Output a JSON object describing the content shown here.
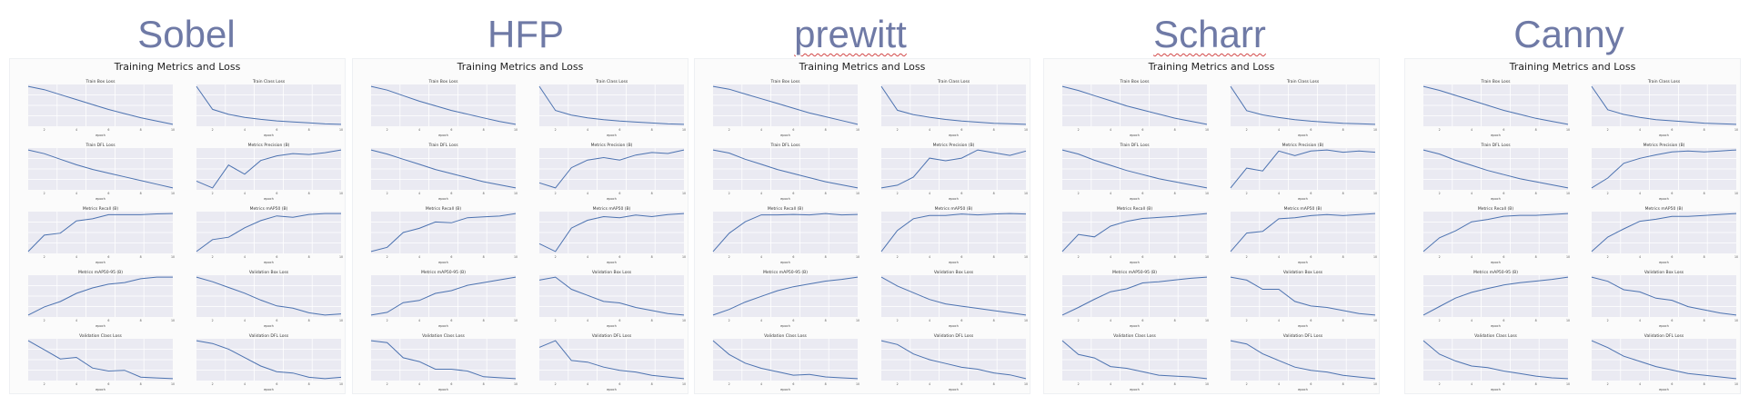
{
  "groups": [
    {
      "title": "Sobel",
      "squiggle": false
    },
    {
      "title": "HFP",
      "squiggle": false
    },
    {
      "title": "prewitt",
      "squiggle": true
    },
    {
      "title": "Scharr",
      "squiggle": true
    },
    {
      "title": "Canny",
      "squiggle": false
    }
  ],
  "colors": {
    "line": "#4c72b0",
    "axes_bg": "#eaeaf2",
    "grid": "#ffffff",
    "title": "#6f7aa6"
  },
  "chart_data": [
    {
      "type": "line",
      "title": "Training Metrics and Loss",
      "x": [
        1,
        2,
        3,
        4,
        5,
        6,
        7,
        8,
        9,
        10
      ],
      "xlabel": "epoch",
      "series": [
        {
          "name": "Train Box Loss",
          "values": [
            3.9,
            3.7,
            3.4,
            3.1,
            2.8,
            2.5,
            2.25,
            2.0,
            1.8,
            1.6
          ]
        },
        {
          "name": "Train Class Loss",
          "values": [
            5.8,
            3.5,
            3.0,
            2.7,
            2.5,
            2.35,
            2.25,
            2.15,
            2.05,
            2.0
          ]
        },
        {
          "name": "Train DFL Loss",
          "values": [
            4.5,
            4.3,
            4.0,
            3.7,
            3.45,
            3.25,
            3.05,
            2.85,
            2.65,
            2.45
          ]
        },
        {
          "name": "Metrics Precision (B)",
          "values": [
            0.2,
            0.05,
            0.55,
            0.35,
            0.65,
            0.75,
            0.8,
            0.78,
            0.82,
            0.88
          ]
        },
        {
          "name": "Metrics Recall (B)",
          "values": [
            0.05,
            0.45,
            0.5,
            0.8,
            0.85,
            0.95,
            0.95,
            0.95,
            0.97,
            0.98
          ]
        },
        {
          "name": "Metrics mAP50 (B)",
          "values": [
            0.1,
            0.35,
            0.4,
            0.6,
            0.75,
            0.85,
            0.82,
            0.88,
            0.9,
            0.9
          ]
        },
        {
          "name": "Metrics mAP50-95 (B)",
          "values": [
            0.05,
            0.2,
            0.3,
            0.45,
            0.55,
            0.62,
            0.65,
            0.72,
            0.75,
            0.75
          ]
        },
        {
          "name": "Validation Box Loss",
          "values": [
            2.8,
            2.6,
            2.35,
            2.1,
            1.8,
            1.55,
            1.45,
            1.25,
            1.15,
            1.2
          ]
        },
        {
          "name": "Validation Class Loss",
          "values": [
            3.6,
            3.0,
            2.4,
            2.5,
            1.8,
            1.6,
            1.65,
            1.2,
            1.15,
            1.1
          ]
        },
        {
          "name": "Validation DFL Loss",
          "values": [
            3.5,
            3.4,
            3.2,
            2.9,
            2.6,
            2.4,
            2.35,
            2.2,
            2.15,
            2.2
          ]
        }
      ]
    },
    {
      "type": "line",
      "title": "Training Metrics and Loss",
      "x": [
        1,
        2,
        3,
        4,
        5,
        6,
        7,
        8,
        9,
        10
      ],
      "xlabel": "epoch",
      "series": [
        {
          "name": "Train Box Loss",
          "values": [
            4.1,
            3.9,
            3.6,
            3.3,
            3.05,
            2.8,
            2.6,
            2.4,
            2.2,
            2.05
          ]
        },
        {
          "name": "Train Class Loss",
          "values": [
            6.0,
            3.4,
            2.9,
            2.6,
            2.4,
            2.25,
            2.15,
            2.05,
            1.95,
            1.9
          ]
        },
        {
          "name": "Train DFL Loss",
          "values": [
            4.3,
            4.1,
            3.85,
            3.6,
            3.35,
            3.15,
            2.95,
            2.75,
            2.6,
            2.45
          ]
        },
        {
          "name": "Metrics Precision (B)",
          "values": [
            0.1,
            0.0,
            0.4,
            0.55,
            0.6,
            0.55,
            0.65,
            0.7,
            0.68,
            0.75
          ]
        },
        {
          "name": "Metrics Recall (B)",
          "values": [
            0.0,
            0.1,
            0.45,
            0.55,
            0.7,
            0.68,
            0.8,
            0.82,
            0.84,
            0.9
          ]
        },
        {
          "name": "Metrics mAP50 (B)",
          "values": [
            0.2,
            0.05,
            0.5,
            0.65,
            0.72,
            0.7,
            0.75,
            0.72,
            0.76,
            0.78
          ]
        },
        {
          "name": "Metrics mAP50-95 (B)",
          "values": [
            0.05,
            0.1,
            0.28,
            0.32,
            0.45,
            0.5,
            0.6,
            0.65,
            0.7,
            0.75
          ]
        },
        {
          "name": "Validation Box Loss",
          "values": [
            2.5,
            2.6,
            2.2,
            2.0,
            1.8,
            1.75,
            1.6,
            1.5,
            1.4,
            1.35
          ]
        },
        {
          "name": "Validation Class Loss",
          "values": [
            3.1,
            3.0,
            2.2,
            2.0,
            1.6,
            1.6,
            1.5,
            1.2,
            1.15,
            1.1
          ]
        },
        {
          "name": "Validation DFL Loss",
          "values": [
            2.4,
            2.6,
            2.0,
            1.95,
            1.8,
            1.7,
            1.65,
            1.55,
            1.5,
            1.45
          ]
        }
      ]
    },
    {
      "type": "line",
      "title": "Training Metrics and Loss",
      "x": [
        1,
        2,
        3,
        4,
        5,
        6,
        7,
        8,
        9,
        10
      ],
      "xlabel": "epoch",
      "series": [
        {
          "name": "Train Box Loss",
          "values": [
            4.0,
            3.85,
            3.6,
            3.35,
            3.1,
            2.85,
            2.6,
            2.4,
            2.2,
            2.0
          ]
        },
        {
          "name": "Train Class Loss",
          "values": [
            5.5,
            3.3,
            2.9,
            2.65,
            2.45,
            2.3,
            2.2,
            2.1,
            2.05,
            2.0
          ]
        },
        {
          "name": "Train DFL Loss",
          "values": [
            4.0,
            3.85,
            3.55,
            3.3,
            3.05,
            2.85,
            2.65,
            2.45,
            2.3,
            2.15
          ]
        },
        {
          "name": "Metrics Precision (B)",
          "values": [
            0.0,
            0.05,
            0.2,
            0.55,
            0.5,
            0.55,
            0.7,
            0.65,
            0.6,
            0.68
          ]
        },
        {
          "name": "Metrics Recall (B)",
          "values": [
            0.05,
            0.45,
            0.7,
            0.85,
            0.85,
            0.86,
            0.85,
            0.88,
            0.85,
            0.86
          ]
        },
        {
          "name": "Metrics mAP50 (B)",
          "values": [
            0.05,
            0.5,
            0.75,
            0.82,
            0.82,
            0.85,
            0.83,
            0.85,
            0.86,
            0.85
          ]
        },
        {
          "name": "Metrics mAP50-95 (B)",
          "values": [
            0.05,
            0.15,
            0.28,
            0.38,
            0.48,
            0.55,
            0.6,
            0.65,
            0.68,
            0.72
          ]
        },
        {
          "name": "Validation Box Loss",
          "values": [
            2.9,
            2.5,
            2.2,
            1.9,
            1.7,
            1.6,
            1.5,
            1.4,
            1.3,
            1.2
          ]
        },
        {
          "name": "Validation Class Loss",
          "values": [
            3.2,
            2.4,
            1.9,
            1.6,
            1.4,
            1.2,
            1.25,
            1.1,
            1.05,
            1.0
          ]
        },
        {
          "name": "Validation DFL Loss",
          "values": [
            2.3,
            2.2,
            1.95,
            1.8,
            1.7,
            1.6,
            1.55,
            1.45,
            1.4,
            1.3
          ]
        }
      ]
    },
    {
      "type": "line",
      "title": "Training Metrics and Loss",
      "x": [
        1,
        2,
        3,
        4,
        5,
        6,
        7,
        8,
        9,
        10
      ],
      "xlabel": "epoch",
      "series": [
        {
          "name": "Train Box Loss",
          "values": [
            3.8,
            3.6,
            3.35,
            3.1,
            2.85,
            2.65,
            2.45,
            2.25,
            2.1,
            1.95
          ]
        },
        {
          "name": "Train Class Loss",
          "values": [
            5.6,
            3.3,
            2.9,
            2.65,
            2.45,
            2.3,
            2.2,
            2.1,
            2.05,
            2.0
          ]
        },
        {
          "name": "Train DFL Loss",
          "values": [
            4.1,
            3.9,
            3.6,
            3.35,
            3.1,
            2.9,
            2.7,
            2.55,
            2.4,
            2.25
          ]
        },
        {
          "name": "Metrics Precision (B)",
          "values": [
            0.15,
            0.5,
            0.45,
            0.8,
            0.72,
            0.8,
            0.82,
            0.78,
            0.8,
            0.78
          ]
        },
        {
          "name": "Metrics Recall (B)",
          "values": [
            0.1,
            0.45,
            0.4,
            0.62,
            0.72,
            0.78,
            0.8,
            0.82,
            0.85,
            0.88
          ]
        },
        {
          "name": "Metrics mAP50 (B)",
          "values": [
            0.1,
            0.45,
            0.48,
            0.72,
            0.74,
            0.78,
            0.8,
            0.78,
            0.8,
            0.82
          ]
        },
        {
          "name": "Metrics mAP50-95 (B)",
          "values": [
            0.05,
            0.18,
            0.32,
            0.45,
            0.5,
            0.6,
            0.62,
            0.65,
            0.68,
            0.7
          ]
        },
        {
          "name": "Validation Box Loss",
          "values": [
            2.7,
            2.6,
            2.3,
            2.3,
            1.9,
            1.75,
            1.7,
            1.6,
            1.5,
            1.45
          ]
        },
        {
          "name": "Validation Class Loss",
          "values": [
            3.4,
            2.6,
            2.4,
            1.9,
            1.8,
            1.6,
            1.4,
            1.35,
            1.3,
            1.2
          ]
        },
        {
          "name": "Validation DFL Loss",
          "values": [
            2.9,
            2.8,
            2.5,
            2.3,
            2.1,
            2.0,
            1.95,
            1.85,
            1.8,
            1.75
          ]
        }
      ]
    },
    {
      "type": "line",
      "title": "Training Metrics and Loss",
      "x": [
        1,
        2,
        3,
        4,
        5,
        6,
        7,
        8,
        9,
        10
      ],
      "xlabel": "epoch",
      "series": [
        {
          "name": "Train Box Loss",
          "values": [
            3.9,
            3.7,
            3.45,
            3.2,
            2.95,
            2.7,
            2.5,
            2.3,
            2.15,
            2.0
          ]
        },
        {
          "name": "Train Class Loss",
          "values": [
            5.2,
            3.2,
            2.8,
            2.55,
            2.35,
            2.25,
            2.15,
            2.05,
            2.0,
            1.95
          ]
        },
        {
          "name": "Train DFL Loss",
          "values": [
            3.9,
            3.7,
            3.4,
            3.15,
            2.9,
            2.7,
            2.5,
            2.35,
            2.2,
            2.05
          ]
        },
        {
          "name": "Metrics Precision (B)",
          "values": [
            0.05,
            0.25,
            0.55,
            0.65,
            0.72,
            0.78,
            0.8,
            0.78,
            0.8,
            0.82
          ]
        },
        {
          "name": "Metrics Recall (B)",
          "values": [
            0.05,
            0.35,
            0.5,
            0.7,
            0.75,
            0.82,
            0.84,
            0.84,
            0.86,
            0.88
          ]
        },
        {
          "name": "Metrics mAP50 (B)",
          "values": [
            0.05,
            0.35,
            0.52,
            0.68,
            0.72,
            0.78,
            0.78,
            0.8,
            0.82,
            0.84
          ]
        },
        {
          "name": "Metrics mAP50-95 (B)",
          "values": [
            0.05,
            0.2,
            0.35,
            0.45,
            0.52,
            0.58,
            0.62,
            0.65,
            0.68,
            0.72
          ]
        },
        {
          "name": "Validation Box Loss",
          "values": [
            3.4,
            3.2,
            2.8,
            2.7,
            2.4,
            2.3,
            2.0,
            1.85,
            1.7,
            1.6
          ]
        },
        {
          "name": "Validation Class Loss",
          "values": [
            3.8,
            3.0,
            2.6,
            2.3,
            2.2,
            2.0,
            1.85,
            1.7,
            1.6,
            1.55
          ]
        },
        {
          "name": "Validation DFL Loss",
          "values": [
            2.8,
            2.6,
            2.35,
            2.2,
            2.05,
            1.95,
            1.85,
            1.8,
            1.75,
            1.7
          ]
        }
      ]
    }
  ]
}
